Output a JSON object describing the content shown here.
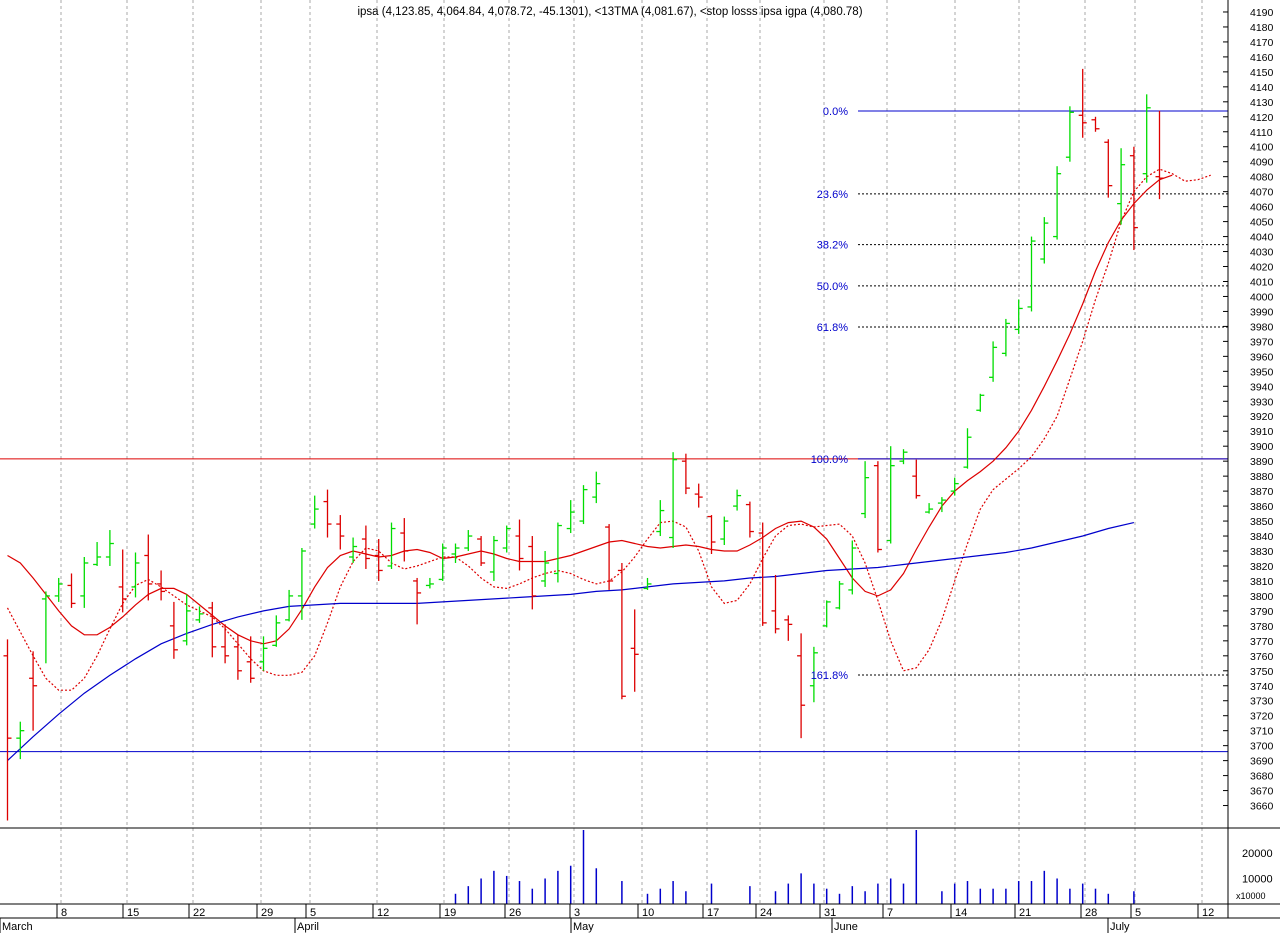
{
  "chart_data": {
    "type": "ohlc",
    "title": "ipsa (4,123.85, 4,064.84, 4,078.72, -45.1301), <13TMA (4,081.67), <stop losss ipsa igpa (4,080.78)",
    "colors": {
      "up": "#00dd00",
      "down": "#dd0000",
      "ma_fast": "#dd0000",
      "ma_slow": "#0000cc",
      "fib": "#0000cc",
      "grid": "#aaaaaa"
    },
    "price_axis": {
      "min": 3645,
      "max": 4198,
      "step": 10,
      "labels_from": 3660,
      "labels_to": 4190
    },
    "volume_axis": {
      "max": 29000,
      "ticks": [
        10000,
        20000
      ],
      "multiplier": "x10000"
    },
    "date_ticks": [
      "8",
      "15",
      "22",
      "29",
      "5",
      "12",
      "19",
      "26",
      "3",
      "10",
      "17",
      "24",
      "31",
      "7",
      "14",
      "21",
      "28",
      "5",
      "12"
    ],
    "months": [
      "March",
      "April",
      "May",
      "June",
      "July"
    ],
    "fib_levels": [
      {
        "label": "0.0%",
        "value": 4123.85,
        "style": "solid"
      },
      {
        "label": "23.6%",
        "value": 4068.5,
        "style": "dotted"
      },
      {
        "label": "38.2%",
        "value": 4034.6,
        "style": "dotted"
      },
      {
        "label": "50.0%",
        "value": 4007.1,
        "style": "dotted"
      },
      {
        "label": "61.8%",
        "value": 3979.6,
        "style": "dotted"
      },
      {
        "label": "100.0%",
        "value": 3891.5,
        "style": "solid"
      },
      {
        "label": "161.8%",
        "value": 3747.2,
        "style": "dotted"
      }
    ],
    "horizontal_lines": [
      {
        "value": 3891.5,
        "color": "#dd0000"
      },
      {
        "value": 3696,
        "color": "#0000cc"
      }
    ],
    "bars": [
      [
        3771,
        3650,
        3760,
        3705
      ],
      [
        3716,
        3691,
        3705,
        3710
      ],
      [
        3763,
        3710,
        3745,
        3740
      ],
      [
        3803,
        3755,
        3798,
        3800
      ],
      [
        3812,
        3796,
        3800,
        3808
      ],
      [
        3815,
        3792,
        3807,
        3795
      ],
      [
        3826,
        3792,
        3800,
        3822
      ],
      [
        3836,
        3820,
        3821,
        3826
      ],
      [
        3844,
        3820,
        3826,
        3835
      ],
      [
        3831,
        3789,
        3806,
        3798
      ],
      [
        3829,
        3799,
        3806,
        3822
      ],
      [
        3841,
        3797,
        3827,
        3808
      ],
      [
        3817,
        3797,
        3808,
        3803
      ],
      [
        3796,
        3758,
        3780,
        3764
      ],
      [
        3801,
        3767,
        3770,
        3790
      ],
      [
        3793,
        3782,
        3784,
        3788
      ],
      [
        3796,
        3759,
        3792,
        3766
      ],
      [
        3781,
        3755,
        3766,
        3760
      ],
      [
        3774,
        3744,
        3766,
        3750
      ],
      [
        3773,
        3742,
        3756,
        3745
      ],
      [
        3773,
        3750,
        3756,
        3765
      ],
      [
        3787,
        3766,
        3767,
        3782
      ],
      [
        3804,
        3783,
        3784,
        3800
      ],
      [
        3832,
        3784,
        3800,
        3830
      ],
      [
        3867,
        3845,
        3848,
        3858
      ],
      [
        3871,
        3839,
        3863,
        3848
      ],
      [
        3854,
        3831,
        3848,
        3840
      ],
      [
        3839,
        3822,
        3826,
        3833
      ],
      [
        3847,
        3818,
        3838,
        3825
      ],
      [
        3838,
        3810,
        3827,
        3817
      ],
      [
        3849,
        3818,
        3820,
        3845
      ],
      [
        3852,
        3823,
        3842,
        3830
      ],
      [
        3812,
        3781,
        3810,
        3802
      ],
      [
        3812,
        3805,
        3807,
        3808
      ],
      [
        3835,
        3810,
        3811,
        3832
      ],
      [
        3835,
        3822,
        3828,
        3832
      ],
      [
        3844,
        3830,
        3832,
        3840
      ],
      [
        3840,
        3820,
        3838,
        3822
      ],
      [
        3840,
        3810,
        3816,
        3837
      ],
      [
        3847,
        3829,
        3832,
        3845
      ],
      [
        3851,
        3817,
        3840,
        3825
      ],
      [
        3840,
        3791,
        3833,
        3800
      ],
      [
        3830,
        3806,
        3810,
        3822
      ],
      [
        3849,
        3809,
        3815,
        3847
      ],
      [
        3864,
        3842,
        3845,
        3856
      ],
      [
        3874,
        3848,
        3850,
        3871
      ],
      [
        3883,
        3862,
        3866,
        3875
      ],
      [
        3848,
        3804,
        3846,
        3810
      ],
      [
        3822,
        3731,
        3817,
        3733
      ],
      [
        3791,
        3736,
        3765,
        3761
      ],
      [
        3812,
        3804,
        3805,
        3808
      ],
      [
        3864,
        3840,
        3843,
        3857
      ],
      [
        3896,
        3832,
        3839,
        3891
      ],
      [
        3895,
        3868,
        3890,
        3872
      ],
      [
        3875,
        3859,
        3868,
        3866
      ],
      [
        3854,
        3828,
        3853,
        3836
      ],
      [
        3853,
        3834,
        3838,
        3850
      ],
      [
        3871,
        3857,
        3860,
        3867
      ],
      [
        3863,
        3839,
        3861,
        3843
      ],
      [
        3849,
        3780,
        3842,
        3782
      ],
      [
        3814,
        3775,
        3790,
        3778
      ],
      [
        3787,
        3770,
        3784,
        3781
      ],
      [
        3775,
        3705,
        3760,
        3727
      ],
      [
        3766,
        3729,
        3740,
        3762
      ],
      [
        3797,
        3779,
        3780,
        3796
      ],
      [
        3810,
        3791,
        3792,
        3808
      ],
      [
        3837,
        3801,
        3804,
        3832
      ],
      [
        3890,
        3852,
        3855,
        3879
      ],
      [
        3890,
        3829,
        3887,
        3831
      ],
      [
        3900,
        3835,
        3837,
        3887
      ],
      [
        3898,
        3888,
        3890,
        3896
      ],
      [
        3891,
        3865,
        3880,
        3867
      ],
      [
        3862,
        3855,
        3856,
        3858
      ],
      [
        3866,
        3856,
        3862,
        3864
      ],
      [
        3879,
        3867,
        3870,
        3875
      ],
      [
        3912,
        3885,
        3886,
        3906
      ],
      [
        3935,
        3923,
        3924,
        3934
      ],
      [
        3970,
        3943,
        3946,
        3966
      ],
      [
        3985,
        3960,
        3962,
        3982
      ],
      [
        3998,
        3975,
        3978,
        3992
      ],
      [
        4040,
        3990,
        3993,
        4037
      ],
      [
        4053,
        4022,
        4025,
        4049
      ],
      [
        4087,
        4038,
        4040,
        4082
      ],
      [
        4127,
        4090,
        4093,
        4123
      ],
      [
        4152,
        4106,
        4121,
        4116
      ],
      [
        4120,
        4110,
        4118,
        4112
      ],
      [
        4105,
        4066,
        4103,
        4074
      ],
      [
        4099,
        4048,
        4062,
        4088
      ],
      [
        4100,
        4031,
        4094,
        4046
      ],
      [
        4135,
        4076,
        4082,
        4126
      ],
      [
        4124,
        4065,
        4080,
        4079
      ]
    ],
    "volume": [
      0,
      0,
      0,
      0,
      0,
      0,
      0,
      0,
      0,
      0,
      0,
      0,
      0,
      0,
      0,
      0,
      0,
      0,
      0,
      0,
      0,
      0,
      0,
      0,
      0,
      0,
      0,
      0,
      0,
      0,
      0,
      0,
      0,
      0,
      0,
      4000,
      7000,
      10000,
      13000,
      11000,
      9000,
      6000,
      10000,
      13000,
      15000,
      29000,
      14000,
      0,
      9000,
      0,
      4000,
      6000,
      9000,
      5000,
      0,
      8000,
      0,
      0,
      7000,
      0,
      5000,
      8000,
      12000,
      8000,
      6000,
      4000,
      7000,
      5000,
      8000,
      10000,
      8000,
      29000,
      0,
      5000,
      8000,
      9000,
      6000,
      6000,
      6000,
      9000,
      9000,
      13000,
      10000,
      6000,
      8000,
      6000,
      4000,
      0,
      5000
    ],
    "ma_fast_13": [
      3827,
      3822,
      3812,
      3801,
      3790,
      3780,
      3774,
      3774,
      3779,
      3786,
      3794,
      3801,
      3805,
      3805,
      3801,
      3794,
      3787,
      3780,
      3774,
      3770,
      3768,
      3770,
      3778,
      3791,
      3806,
      3819,
      3827,
      3830,
      3828,
      3826,
      3827,
      3830,
      3831,
      3829,
      3825,
      3826,
      3828,
      3830,
      3828,
      3825,
      3823,
      3823,
      3823,
      3825,
      3827,
      3830,
      3833,
      3836,
      3837,
      3835,
      3833,
      3832,
      3833,
      3834,
      3833,
      3831,
      3830,
      3830,
      3834,
      3839,
      3845,
      3849,
      3850,
      3846,
      3838,
      3825,
      3812,
      3803,
      3800,
      3804,
      3815,
      3831,
      3846,
      3860,
      3870,
      3877,
      3883,
      3890,
      3899,
      3910,
      3924,
      3940,
      3957,
      3975,
      3995,
      4017,
      4036,
      4051,
      4062,
      4071,
      4078,
      4081
    ],
    "ma_dotted": [
      3792,
      3776,
      3760,
      3745,
      3737,
      3737,
      3745,
      3760,
      3778,
      3795,
      3807,
      3811,
      3806,
      3800,
      3794,
      3790,
      3786,
      3778,
      3768,
      3758,
      3750,
      3747,
      3747,
      3749,
      3760,
      3782,
      3806,
      3823,
      3832,
      3830,
      3822,
      3818,
      3820,
      3823,
      3826,
      3826,
      3820,
      3812,
      3806,
      3805,
      3808,
      3812,
      3815,
      3817,
      3815,
      3811,
      3808,
      3810,
      3816,
      3826,
      3838,
      3849,
      3850,
      3846,
      3830,
      3806,
      3795,
      3797,
      3808,
      3825,
      3840,
      3847,
      3848,
      3846,
      3847,
      3848,
      3840,
      3822,
      3797,
      3770,
      3750,
      3752,
      3764,
      3784,
      3810,
      3835,
      3858,
      3871,
      3878,
      3885,
      3893,
      3905,
      3920,
      3945,
      3970,
      3998,
      4022,
      4050,
      4070,
      4080,
      4085,
      4082,
      4077,
      4078,
      4081
    ],
    "ma_slow": [
      3690,
      3706,
      3721,
      3735,
      3747,
      3758,
      3768,
      3775,
      3781,
      3786,
      3790,
      3793,
      3794,
      3795,
      3795,
      3795,
      3795,
      3796,
      3797,
      3798,
      3799,
      3800,
      3801,
      3803,
      3804,
      3806,
      3808,
      3809,
      3810,
      3812,
      3813,
      3815,
      3817,
      3818,
      3819,
      3821,
      3823,
      3825,
      3827,
      3829,
      3832,
      3836,
      3840,
      3845,
      3849
    ]
  }
}
